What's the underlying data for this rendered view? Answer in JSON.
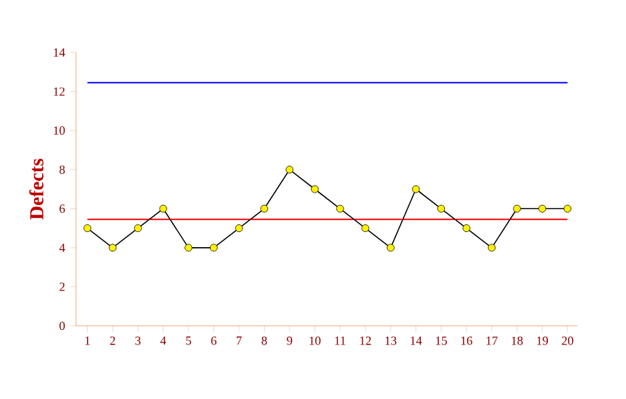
{
  "chart_data": {
    "type": "line",
    "ylabel": "Defects",
    "categories": [
      "1",
      "2",
      "3",
      "4",
      "5",
      "6",
      "7",
      "8",
      "9",
      "10",
      "11",
      "12",
      "13",
      "14",
      "15",
      "16",
      "17",
      "18",
      "19",
      "20"
    ],
    "series": [
      {
        "color": "#000000",
        "values": [
          5,
          4,
          5,
          6,
          4,
          4,
          5,
          6,
          8,
          7,
          6,
          5,
          4,
          7,
          6,
          5,
          4,
          6,
          6,
          6
        ]
      }
    ],
    "ylim": [
      0,
      14
    ],
    "yticks": [
      0,
      2,
      4,
      6,
      8,
      10,
      12,
      14
    ],
    "ref_lines": [
      {
        "axis": "y",
        "value": 12.45,
        "color": "#0000ff"
      },
      {
        "axis": "y",
        "value": 5.45,
        "color": "#ff0000"
      }
    ],
    "marker": "circle",
    "grid": false
  }
}
